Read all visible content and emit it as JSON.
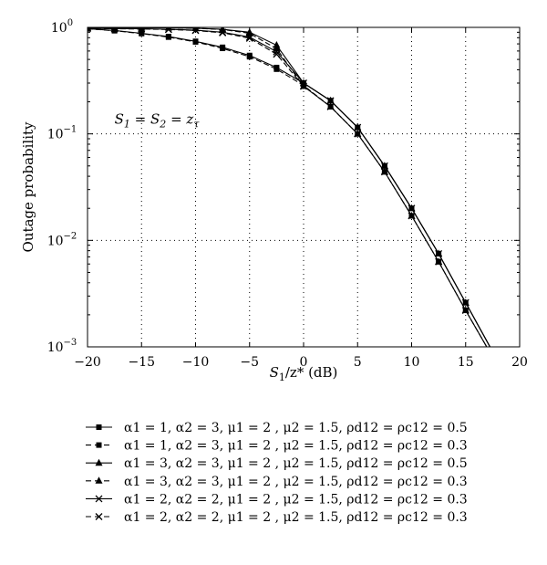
{
  "chart_data": {
    "type": "line",
    "xlabel": {
      "var": "S",
      "sub": "1",
      "rest": "/z* (dB)"
    },
    "ylabel": "Outage probability",
    "xlim": [
      -20,
      20
    ],
    "ylim": [
      0.001,
      1
    ],
    "yscale": "log",
    "grid": true,
    "legend_position": "bottom",
    "xticks": [
      -20,
      -15,
      -10,
      -5,
      0,
      5,
      10,
      15,
      20
    ],
    "xtick_labels": [
      "−20",
      "−15",
      "−10",
      "−5",
      "0",
      "5",
      "10",
      "15",
      "20"
    ],
    "yticks": [
      {
        "value": 1,
        "base": "10",
        "exp": "0"
      },
      {
        "value": 0.1,
        "base": "10",
        "exp": "−1"
      },
      {
        "value": 0.01,
        "base": "10",
        "exp": "−2"
      },
      {
        "value": 0.001,
        "base": "10",
        "exp": "−3"
      }
    ],
    "annotation": {
      "parts": [
        "S",
        "1",
        " = S",
        "2",
        " = z",
        "τ"
      ],
      "x": -17.5,
      "y": 0.125
    },
    "x": [
      -20,
      -17.5,
      -15,
      -12.5,
      -10,
      -7.5,
      -5,
      -2.5,
      0,
      2.5,
      5,
      7.5,
      10,
      12.5,
      15,
      17.5
    ],
    "series": [
      {
        "label": "α1 = 1, α2 = 3, μ1 = 2 , μ2 = 1.5, ρd12 = ρc12 = 0.5",
        "marker": "square",
        "dash": "solid",
        "values": [
          0.97,
          0.935,
          0.88,
          0.82,
          0.74,
          0.65,
          0.545,
          0.42,
          0.3,
          0.205,
          0.115,
          0.05,
          0.02,
          0.0075,
          0.0026,
          0.0009
        ]
      },
      {
        "label": "α1 = 1, α2 = 3, μ1 = 2 , μ2 = 1.5, ρd12 = ρc12 = 0.3",
        "marker": "square",
        "dash": "dashed",
        "values": [
          0.97,
          0.93,
          0.875,
          0.81,
          0.73,
          0.635,
          0.53,
          0.405,
          0.285,
          0.18,
          0.1,
          0.044,
          0.017,
          0.0063,
          0.0022,
          0.0008
        ]
      },
      {
        "label": "α1 = 3, α2 = 3, μ1 = 2 , μ2 = 1.5, ρd12 = ρc12 = 0.5",
        "marker": "triangle",
        "dash": "solid",
        "values": [
          0.99,
          0.99,
          0.99,
          0.99,
          0.98,
          0.96,
          0.9,
          0.68,
          0.3,
          0.205,
          0.115,
          0.05,
          0.02,
          0.0075,
          0.0026,
          0.0009
        ]
      },
      {
        "label": "α1 = 3, α2 = 3, μ1 = 2 , μ2 = 1.5, ρd12 = ρc12 = 0.3",
        "marker": "triangle",
        "dash": "dashed",
        "values": [
          0.99,
          0.99,
          0.99,
          0.99,
          0.98,
          0.955,
          0.88,
          0.63,
          0.28,
          0.18,
          0.1,
          0.044,
          0.017,
          0.0063,
          0.0022,
          0.0008
        ]
      },
      {
        "label": "α1 = 2, α2 = 2, μ1 = 2 , μ2 = 1.5, ρd12 = ρc12 = 0.3",
        "marker": "cross",
        "dash": "solid",
        "values": [
          0.98,
          0.97,
          0.97,
          0.96,
          0.94,
          0.9,
          0.81,
          0.59,
          0.3,
          0.205,
          0.115,
          0.05,
          0.02,
          0.0075,
          0.0026,
          0.0009
        ]
      },
      {
        "label": "α1 = 2, α2 = 2, μ1 = 2 , μ2 = 1.5, ρd12 = ρc12 = 0.3",
        "marker": "cross",
        "dash": "dashed",
        "values": [
          0.98,
          0.97,
          0.965,
          0.955,
          0.935,
          0.89,
          0.79,
          0.56,
          0.28,
          0.18,
          0.1,
          0.044,
          0.017,
          0.0063,
          0.0022,
          0.0008
        ]
      }
    ]
  }
}
